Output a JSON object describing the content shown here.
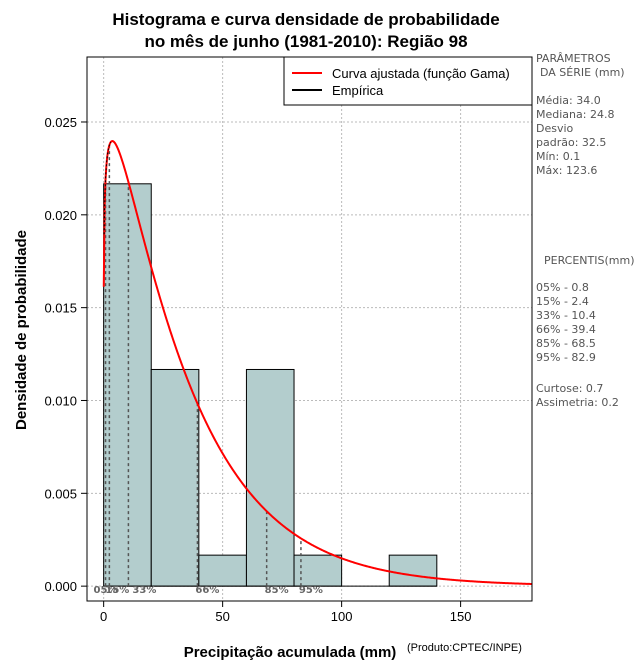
{
  "chart_data": {
    "type": "bar",
    "title_line1": "Histograma e curva densidade de probabilidade",
    "title_line2": "no mês de junho (1981-2010): Região 98",
    "xlabel": "Precipitação acumulada (mm)",
    "ylabel": "Densidade de probabilidade",
    "credit": "(Produto:CPTEC/INPE)",
    "xlim": [
      -7,
      180
    ],
    "ylim": [
      -0.0008,
      0.0285
    ],
    "x_ticks": [
      0,
      50,
      100,
      150
    ],
    "y_ticks": [
      0.0,
      0.005,
      0.01,
      0.015,
      0.02,
      0.025
    ],
    "y_tick_labels": [
      "0.000",
      "0.005",
      "0.010",
      "0.015",
      "0.020",
      "0.025"
    ],
    "bins": [
      {
        "start": 0,
        "end": 20,
        "density": 0.02167
      },
      {
        "start": 20,
        "end": 40,
        "density": 0.01167
      },
      {
        "start": 40,
        "end": 60,
        "density": 0.00167
      },
      {
        "start": 60,
        "end": 80,
        "density": 0.01167
      },
      {
        "start": 80,
        "end": 100,
        "density": 0.00167
      },
      {
        "start": 100,
        "end": 120,
        "density": 0.0
      },
      {
        "start": 120,
        "end": 140,
        "density": 0.00167
      }
    ],
    "gamma_fit": {
      "shape": 1.12,
      "scale": 30.4
    },
    "series": [
      {
        "name": "Curva ajustada (função Gama)",
        "color": "#ff0000"
      },
      {
        "name": "Empírica",
        "color": "#000000"
      }
    ],
    "percentile_markers": [
      {
        "label": "05%",
        "x": 0.8
      },
      {
        "label": "15%",
        "x": 2.4
      },
      {
        "label": "33%",
        "x": 10.4
      },
      {
        "label": "66%",
        "x": 39.4
      },
      {
        "label": "85%",
        "x": 68.5
      },
      {
        "label": "95%",
        "x": 82.9
      }
    ],
    "grid": true,
    "legend_position": "top-right"
  },
  "sidebar": {
    "params_title_1": "PARÂMETROS",
    "params_title_2": "DA SÉRIE (mm)",
    "media": "Média:  34.0",
    "mediana": "Mediana:  24.8",
    "desvio_1": "Desvio",
    "desvio_2": "padrão:  32.5",
    "min": "Mín:  0.1",
    "max": "Máx:  123.6",
    "pct_title": "PERCENTIS(mm)",
    "p05": "05% -   0.8",
    "p15": "15% -   2.4",
    "p33": "33% -   10.4",
    "p66": "66% -   39.4",
    "p85": "85% -   68.5",
    "p95": "95% -   82.9",
    "curtose": "Curtose:  0.7",
    "assimetria": "Assimetria:  0.2"
  },
  "colors": {
    "bar_fill": "#b3cdcd",
    "bar_stroke": "#000000",
    "curve": "#ff0000",
    "grid": "#bbbbbb",
    "marker": "#555555"
  }
}
